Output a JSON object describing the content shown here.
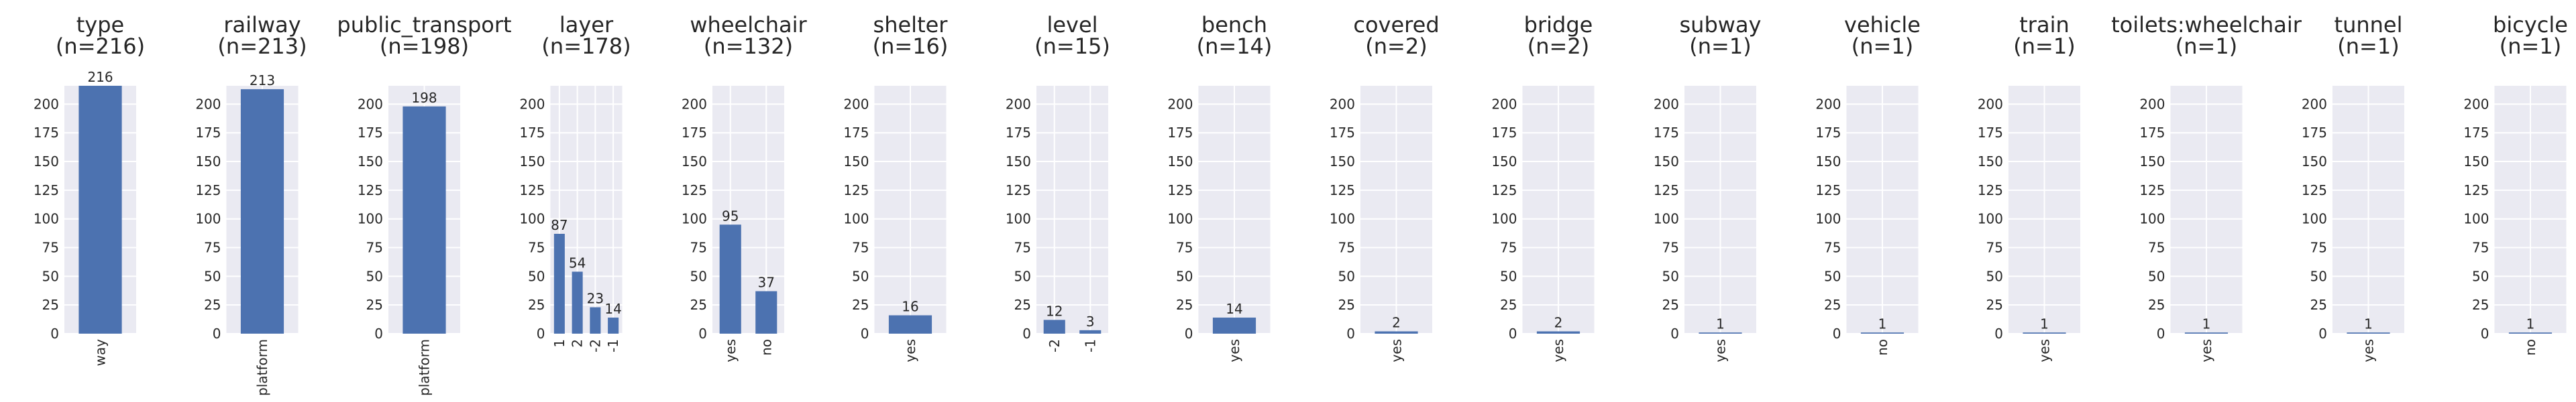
{
  "chart_data": [
    {
      "type": "bar",
      "title_line1": "type",
      "title_line2": "(n=216)",
      "categories": [
        "way"
      ],
      "values": [
        216
      ],
      "ylim": [
        0,
        216
      ],
      "yticks": [
        0,
        25,
        50,
        75,
        100,
        125,
        150,
        175,
        200
      ]
    },
    {
      "type": "bar",
      "title_line1": "railway",
      "title_line2": "(n=213)",
      "categories": [
        "platform"
      ],
      "values": [
        213
      ],
      "ylim": [
        0,
        216
      ],
      "yticks": [
        0,
        25,
        50,
        75,
        100,
        125,
        150,
        175,
        200
      ]
    },
    {
      "type": "bar",
      "title_line1": "public_transport",
      "title_line2": "(n=198)",
      "categories": [
        "platform"
      ],
      "values": [
        198
      ],
      "ylim": [
        0,
        216
      ],
      "yticks": [
        0,
        25,
        50,
        75,
        100,
        125,
        150,
        175,
        200
      ]
    },
    {
      "type": "bar",
      "title_line1": "layer",
      "title_line2": "(n=178)",
      "categories": [
        "1",
        "2",
        "-2",
        "-1"
      ],
      "values": [
        87,
        54,
        23,
        14
      ],
      "ylim": [
        0,
        216
      ],
      "yticks": [
        0,
        25,
        50,
        75,
        100,
        125,
        150,
        175,
        200
      ]
    },
    {
      "type": "bar",
      "title_line1": "wheelchair",
      "title_line2": "(n=132)",
      "categories": [
        "yes",
        "no"
      ],
      "values": [
        95,
        37
      ],
      "ylim": [
        0,
        216
      ],
      "yticks": [
        0,
        25,
        50,
        75,
        100,
        125,
        150,
        175,
        200
      ]
    },
    {
      "type": "bar",
      "title_line1": "shelter",
      "title_line2": "(n=16)",
      "categories": [
        "yes"
      ],
      "values": [
        16
      ],
      "ylim": [
        0,
        216
      ],
      "yticks": [
        0,
        25,
        50,
        75,
        100,
        125,
        150,
        175,
        200
      ]
    },
    {
      "type": "bar",
      "title_line1": "level",
      "title_line2": "(n=15)",
      "categories": [
        "-2",
        "-1"
      ],
      "values": [
        12,
        3
      ],
      "ylim": [
        0,
        216
      ],
      "yticks": [
        0,
        25,
        50,
        75,
        100,
        125,
        150,
        175,
        200
      ]
    },
    {
      "type": "bar",
      "title_line1": "bench",
      "title_line2": "(n=14)",
      "categories": [
        "yes"
      ],
      "values": [
        14
      ],
      "ylim": [
        0,
        216
      ],
      "yticks": [
        0,
        25,
        50,
        75,
        100,
        125,
        150,
        175,
        200
      ]
    },
    {
      "type": "bar",
      "title_line1": "covered",
      "title_line2": "(n=2)",
      "categories": [
        "yes"
      ],
      "values": [
        2
      ],
      "ylim": [
        0,
        216
      ],
      "yticks": [
        0,
        25,
        50,
        75,
        100,
        125,
        150,
        175,
        200
      ]
    },
    {
      "type": "bar",
      "title_line1": "bridge",
      "title_line2": "(n=2)",
      "categories": [
        "yes"
      ],
      "values": [
        2
      ],
      "ylim": [
        0,
        216
      ],
      "yticks": [
        0,
        25,
        50,
        75,
        100,
        125,
        150,
        175,
        200
      ]
    },
    {
      "type": "bar",
      "title_line1": "subway",
      "title_line2": "(n=1)",
      "categories": [
        "yes"
      ],
      "values": [
        1
      ],
      "ylim": [
        0,
        216
      ],
      "yticks": [
        0,
        25,
        50,
        75,
        100,
        125,
        150,
        175,
        200
      ]
    },
    {
      "type": "bar",
      "title_line1": "vehicle",
      "title_line2": "(n=1)",
      "categories": [
        "no"
      ],
      "values": [
        1
      ],
      "ylim": [
        0,
        216
      ],
      "yticks": [
        0,
        25,
        50,
        75,
        100,
        125,
        150,
        175,
        200
      ]
    },
    {
      "type": "bar",
      "title_line1": "train",
      "title_line2": "(n=1)",
      "categories": [
        "yes"
      ],
      "values": [
        1
      ],
      "ylim": [
        0,
        216
      ],
      "yticks": [
        0,
        25,
        50,
        75,
        100,
        125,
        150,
        175,
        200
      ]
    },
    {
      "type": "bar",
      "title_line1": "toilets:wheelchair",
      "title_line2": "(n=1)",
      "categories": [
        "yes"
      ],
      "values": [
        1
      ],
      "ylim": [
        0,
        216
      ],
      "yticks": [
        0,
        25,
        50,
        75,
        100,
        125,
        150,
        175,
        200
      ]
    },
    {
      "type": "bar",
      "title_line1": "tunnel",
      "title_line2": "(n=1)",
      "categories": [
        "yes"
      ],
      "values": [
        1
      ],
      "ylim": [
        0,
        216
      ],
      "yticks": [
        0,
        25,
        50,
        75,
        100,
        125,
        150,
        175,
        200
      ]
    },
    {
      "type": "bar",
      "title_line1": "bicycle",
      "title_line2": "(n=1)",
      "categories": [
        "no"
      ],
      "values": [
        1
      ],
      "ylim": [
        0,
        216
      ],
      "yticks": [
        0,
        25,
        50,
        75,
        100,
        125,
        150,
        175,
        200
      ]
    }
  ],
  "colors": {
    "bar": "#4c72b0",
    "plot_background": "#eaeaf2",
    "grid": "#ffffff",
    "text": "#262626"
  },
  "grid": true
}
